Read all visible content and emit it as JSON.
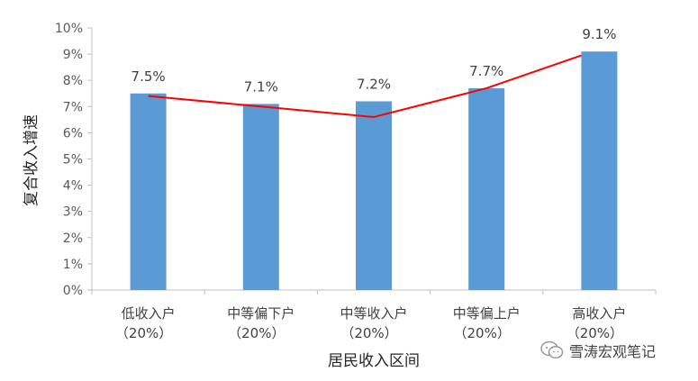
{
  "chart_data": {
    "type": "bar",
    "categories": [
      "低收入户",
      "中等偏下户",
      "中等收入户",
      "中等偏上户",
      "高收入户"
    ],
    "category_sublabels": [
      "（20%）",
      "（20%）",
      "（20%）",
      "（20%）",
      "（20%）"
    ],
    "values": [
      7.5,
      7.1,
      7.2,
      7.7,
      9.1
    ],
    "data_labels": [
      "7.5%",
      "7.1%",
      "7.2%",
      "7.7%",
      "9.1%"
    ],
    "trendline": {
      "type": "line",
      "color": "#ff0000",
      "values": [
        7.4,
        7.0,
        6.6,
        7.7,
        8.95
      ]
    },
    "ylabel": "复合收入增速",
    "xlabel": "居民收入区间",
    "ylim": [
      0,
      10
    ],
    "yticks": [
      "0%",
      "1%",
      "2%",
      "3%",
      "4%",
      "5%",
      "6%",
      "7%",
      "8%",
      "9%",
      "10%"
    ],
    "bar_color": "#5b9bd5",
    "grid": false,
    "legend": "none"
  },
  "watermark": {
    "text": "雪涛宏观笔记",
    "icon": "wechat-icon"
  }
}
